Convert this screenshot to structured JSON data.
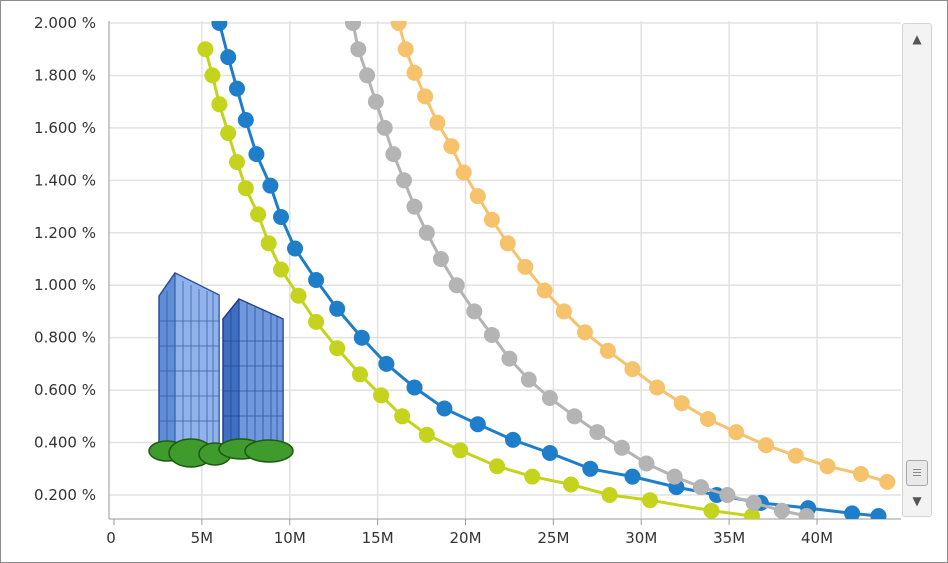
{
  "chart_data": {
    "type": "scatter",
    "mode": "lines+markers",
    "title": "",
    "xlabel": "",
    "ylabel": "",
    "xlim": [
      0,
      45000000
    ],
    "ylim": [
      0.1,
      2.0
    ],
    "x_ticks": [
      0,
      5000000,
      10000000,
      15000000,
      20000000,
      25000000,
      30000000,
      35000000,
      40000000
    ],
    "x_tick_labels": [
      "0",
      "5M",
      "10M",
      "15M",
      "20M",
      "25M",
      "30M",
      "35M",
      "40M"
    ],
    "y_ticks": [
      0.2,
      0.4,
      0.6,
      0.8,
      1.0,
      1.2,
      1.4,
      1.6,
      1.8,
      2.0
    ],
    "y_tick_labels": [
      "0.200 %",
      "0.400 %",
      "0.600 %",
      "0.800 %",
      "1.000 %",
      "1.200 %",
      "1.400 %",
      "1.600 %",
      "1.800 %",
      "2.000 %"
    ],
    "grid": true,
    "legend": "none",
    "series": [
      {
        "color": "#c4d41d",
        "points": [
          [
            5200000,
            1.9
          ],
          [
            5600000,
            1.8
          ],
          [
            6000000,
            1.69
          ],
          [
            6500000,
            1.58
          ],
          [
            7000000,
            1.47
          ],
          [
            7500000,
            1.37
          ],
          [
            8200000,
            1.27
          ],
          [
            8800000,
            1.16
          ],
          [
            9500000,
            1.06
          ],
          [
            10500000,
            0.96
          ],
          [
            11500000,
            0.86
          ],
          [
            12700000,
            0.76
          ],
          [
            14000000,
            0.66
          ],
          [
            15200000,
            0.58
          ],
          [
            16400000,
            0.5
          ],
          [
            17800000,
            0.43
          ],
          [
            19700000,
            0.37
          ],
          [
            21800000,
            0.31
          ],
          [
            23800000,
            0.27
          ],
          [
            26000000,
            0.24
          ],
          [
            28200000,
            0.2
          ],
          [
            30500000,
            0.18
          ],
          [
            34000000,
            0.14
          ],
          [
            36300000,
            0.12
          ]
        ]
      },
      {
        "color": "#1f7ec9",
        "points": [
          [
            6000000,
            2.0
          ],
          [
            6500000,
            1.87
          ],
          [
            7000000,
            1.75
          ],
          [
            7500000,
            1.63
          ],
          [
            8100000,
            1.5
          ],
          [
            8900000,
            1.38
          ],
          [
            9500000,
            1.26
          ],
          [
            10300000,
            1.14
          ],
          [
            11500000,
            1.02
          ],
          [
            12700000,
            0.91
          ],
          [
            14100000,
            0.8
          ],
          [
            15500000,
            0.7
          ],
          [
            17100000,
            0.61
          ],
          [
            18800000,
            0.53
          ],
          [
            20700000,
            0.47
          ],
          [
            22700000,
            0.41
          ],
          [
            24800000,
            0.36
          ],
          [
            27100000,
            0.3
          ],
          [
            29500000,
            0.27
          ],
          [
            32000000,
            0.23
          ],
          [
            34300000,
            0.2
          ],
          [
            36800000,
            0.17
          ],
          [
            39500000,
            0.15
          ],
          [
            42000000,
            0.13
          ],
          [
            43500000,
            0.12
          ]
        ]
      },
      {
        "color": "#b4b4b4",
        "points": [
          [
            13600000,
            2.0
          ],
          [
            13900000,
            1.9
          ],
          [
            14400000,
            1.8
          ],
          [
            14900000,
            1.7
          ],
          [
            15400000,
            1.6
          ],
          [
            15900000,
            1.5
          ],
          [
            16500000,
            1.4
          ],
          [
            17100000,
            1.3
          ],
          [
            17800000,
            1.2
          ],
          [
            18600000,
            1.1
          ],
          [
            19500000,
            1.0
          ],
          [
            20500000,
            0.9
          ],
          [
            21500000,
            0.81
          ],
          [
            22500000,
            0.72
          ],
          [
            23600000,
            0.64
          ],
          [
            24800000,
            0.57
          ],
          [
            26200000,
            0.5
          ],
          [
            27500000,
            0.44
          ],
          [
            28900000,
            0.38
          ],
          [
            30300000,
            0.32
          ],
          [
            31900000,
            0.27
          ],
          [
            33400000,
            0.23
          ],
          [
            34900000,
            0.2
          ],
          [
            36400000,
            0.17
          ],
          [
            38000000,
            0.14
          ],
          [
            39400000,
            0.12
          ]
        ]
      },
      {
        "color": "#f6c26c",
        "points": [
          [
            16200000,
            2.0
          ],
          [
            16600000,
            1.9
          ],
          [
            17100000,
            1.81
          ],
          [
            17700000,
            1.72
          ],
          [
            18400000,
            1.62
          ],
          [
            19200000,
            1.53
          ],
          [
            19900000,
            1.43
          ],
          [
            20700000,
            1.34
          ],
          [
            21500000,
            1.25
          ],
          [
            22400000,
            1.16
          ],
          [
            23400000,
            1.07
          ],
          [
            24500000,
            0.98
          ],
          [
            25600000,
            0.9
          ],
          [
            26800000,
            0.82
          ],
          [
            28100000,
            0.75
          ],
          [
            29500000,
            0.68
          ],
          [
            30900000,
            0.61
          ],
          [
            32300000,
            0.55
          ],
          [
            33800000,
            0.49
          ],
          [
            35400000,
            0.44
          ],
          [
            37100000,
            0.39
          ],
          [
            38800000,
            0.35
          ],
          [
            40600000,
            0.31
          ],
          [
            42500000,
            0.28
          ],
          [
            44000000,
            0.25
          ]
        ]
      }
    ]
  },
  "colors": {
    "grid": "#e2e2e2",
    "axis": "#9a9a9a",
    "building_blue": "#5a86d0",
    "trees": "#3e9b2c"
  },
  "icons": {
    "building": "office-buildings-icon",
    "scroll_up": "chevron-up-icon",
    "scroll_down": "chevron-down-icon"
  }
}
